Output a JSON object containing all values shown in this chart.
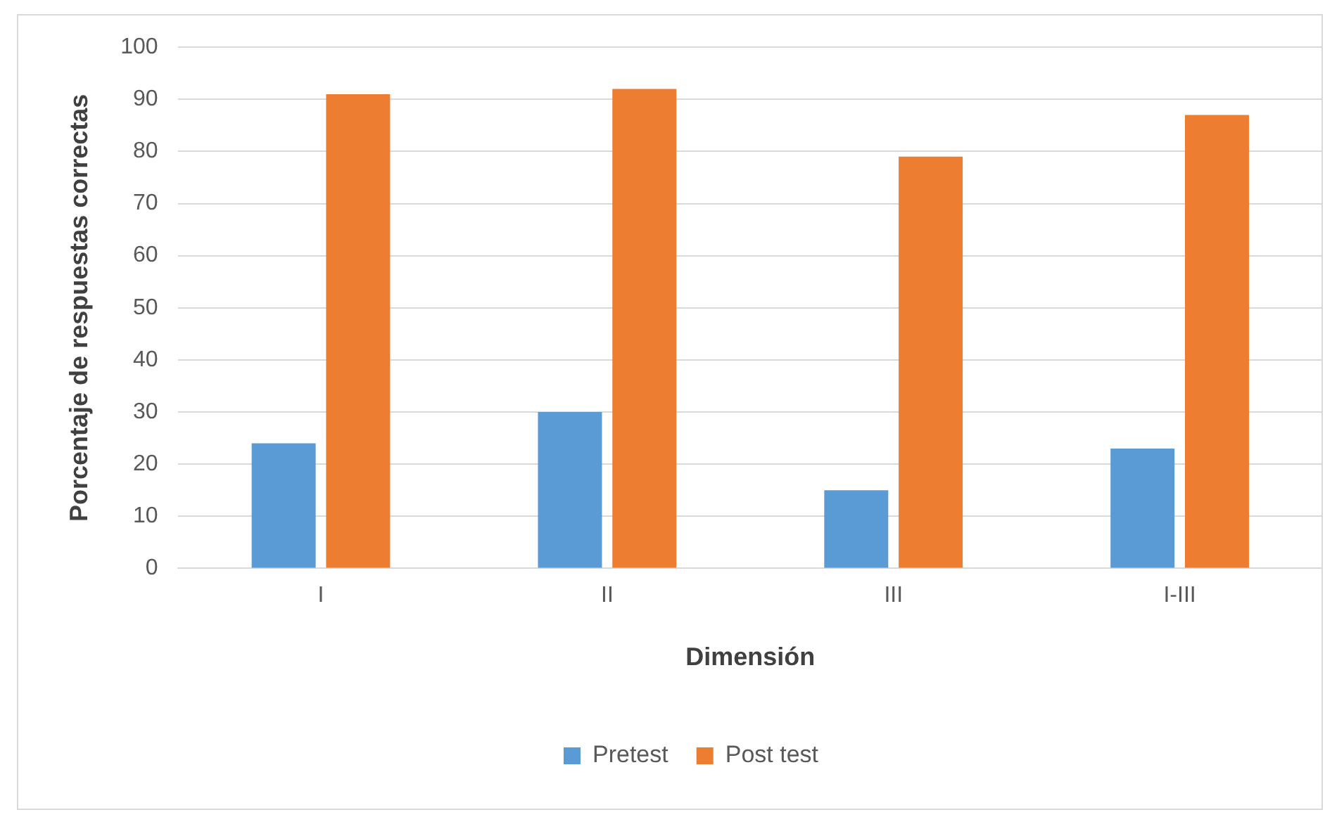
{
  "chart_data": {
    "type": "bar",
    "xlabel": "Dimensión",
    "ylabel": "Porcentaje de respuestas correctas",
    "categories": [
      "I",
      "II",
      "III",
      "I-III"
    ],
    "series": [
      {
        "name": "Pretest",
        "color": "#5b9bd5",
        "values": [
          24,
          30,
          15,
          23
        ]
      },
      {
        "name": "Post test",
        "color": "#ed7d31",
        "values": [
          91,
          92,
          79,
          87
        ]
      }
    ],
    "ylim": [
      0,
      100
    ],
    "yticks": [
      0,
      10,
      20,
      30,
      40,
      50,
      60,
      70,
      80,
      90,
      100
    ],
    "grid": "y",
    "legend": "bottom"
  }
}
